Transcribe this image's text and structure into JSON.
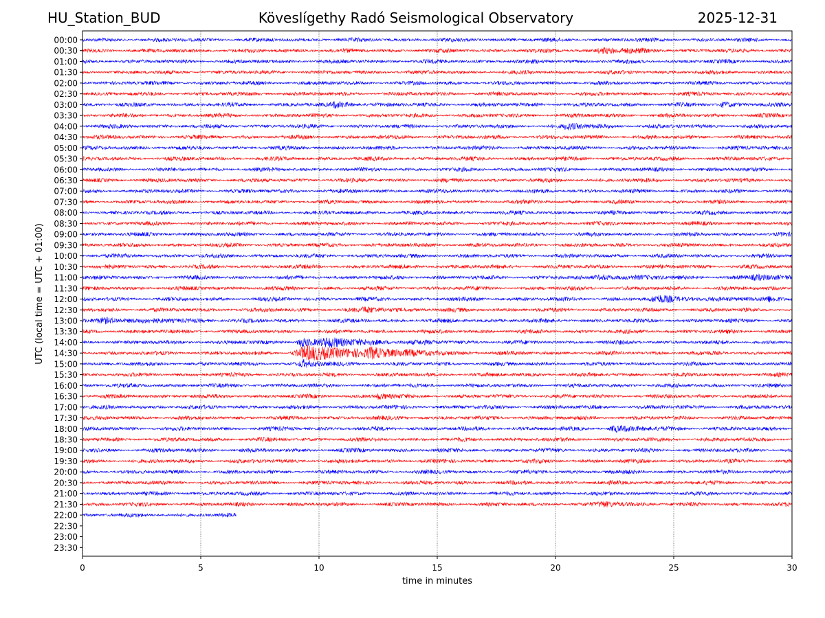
{
  "header": {
    "station": "HU_Station_BUD",
    "observatory": "Köveslígethy Radó Seismological Observatory",
    "date": "2025-12-31"
  },
  "chart_data": {
    "type": "line",
    "title": "Köveslígethy Radó Seismological Observatory",
    "xlabel": "time in minutes",
    "ylabel": "UTC (local time = UTC + 01:00)",
    "xlim": [
      0,
      30
    ],
    "xticks": [
      0,
      5,
      10,
      15,
      20,
      25,
      30
    ],
    "grid_x": true,
    "grid_style": "dotted",
    "colors": [
      "#0000ff",
      "#ff0000"
    ],
    "rows": [
      "00:00",
      "00:30",
      "01:00",
      "01:30",
      "02:00",
      "02:30",
      "03:00",
      "03:30",
      "04:00",
      "04:30",
      "05:00",
      "05:30",
      "06:00",
      "06:30",
      "07:00",
      "07:30",
      "08:00",
      "08:30",
      "09:00",
      "09:30",
      "10:00",
      "10:30",
      "11:00",
      "11:30",
      "12:00",
      "12:30",
      "13:00",
      "13:30",
      "14:00",
      "14:30",
      "15:00",
      "15:30",
      "16:00",
      "16:30",
      "17:00",
      "17:30",
      "18:00",
      "18:30",
      "19:00",
      "19:30",
      "20:00",
      "20:30",
      "21:00",
      "21:30",
      "22:00",
      "22:30",
      "23:00",
      "23:30"
    ],
    "trace_end_minutes": [
      30,
      30,
      30,
      30,
      30,
      30,
      30,
      30,
      30,
      30,
      30,
      30,
      30,
      30,
      30,
      30,
      30,
      30,
      30,
      30,
      30,
      30,
      30,
      30,
      30,
      30,
      30,
      30,
      30,
      30,
      30,
      30,
      30,
      30,
      30,
      30,
      30,
      30,
      30,
      30,
      30,
      30,
      30,
      30,
      6.5,
      0,
      0,
      0
    ],
    "events": [
      {
        "row": "00:30",
        "minute": 22.0,
        "amplitude": 1.6,
        "duration": 1.2
      },
      {
        "row": "03:00",
        "minute": 10.7,
        "amplitude": 1.5,
        "duration": 0.8
      },
      {
        "row": "03:00",
        "minute": 27.1,
        "amplitude": 1.3,
        "duration": 0.6
      },
      {
        "row": "04:00",
        "minute": 20.5,
        "amplitude": 1.6,
        "duration": 0.8
      },
      {
        "row": "11:00",
        "minute": 22.0,
        "amplitude": 1.3,
        "duration": 1.5
      },
      {
        "row": "11:00",
        "minute": 28.5,
        "amplitude": 1.3,
        "duration": 1.2
      },
      {
        "row": "12:00",
        "minute": 24.3,
        "amplitude": 1.6,
        "duration": 1.5
      },
      {
        "row": "12:00",
        "minute": 29.0,
        "amplitude": 1.4,
        "duration": 0.8
      },
      {
        "row": "12:30",
        "minute": 12.0,
        "amplitude": 1.3,
        "duration": 1.0
      },
      {
        "row": "13:00",
        "minute": 1.0,
        "amplitude": 1.4,
        "duration": 2.0
      },
      {
        "row": "14:00",
        "minute": 10.5,
        "amplitude": 2.2,
        "duration": 2.0
      },
      {
        "row": "14:00",
        "minute": 9.2,
        "amplitude": 3.0,
        "duration": 0.6
      },
      {
        "row": "14:30",
        "minute": 9.5,
        "amplitude": 4.2,
        "duration": 2.5
      },
      {
        "row": "14:30",
        "minute": 12.2,
        "amplitude": 2.4,
        "duration": 1.0
      },
      {
        "row": "15:00",
        "minute": 9.3,
        "amplitude": 2.0,
        "duration": 0.6
      },
      {
        "row": "16:30",
        "minute": 12.5,
        "amplitude": 1.6,
        "duration": 0.5
      },
      {
        "row": "18:00",
        "minute": 22.5,
        "amplitude": 1.6,
        "duration": 1.0
      },
      {
        "row": "21:30",
        "minute": 22.0,
        "amplitude": 1.3,
        "duration": 1.0
      }
    ]
  }
}
